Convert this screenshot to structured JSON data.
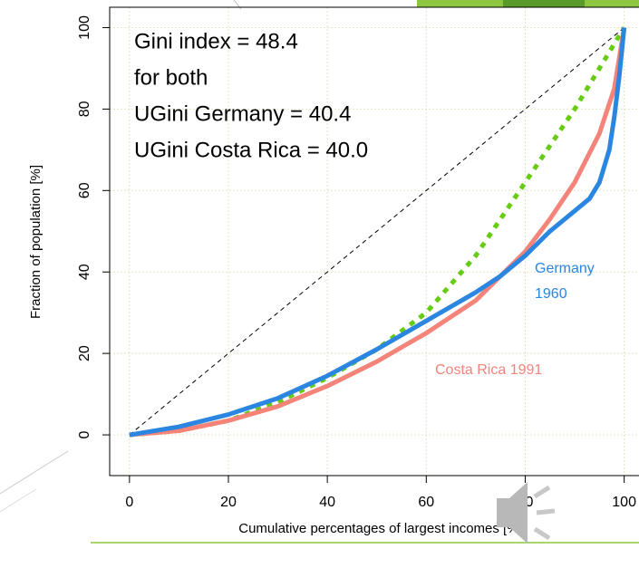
{
  "chart_data": {
    "type": "line",
    "annotation": [
      "Gini index = 48.4",
      "for both",
      "UGini Germany = 40.4",
      "UGini Costa Rica = 40.0"
    ],
    "xlabel": "Cumulative percentages of largest incomes [%]",
    "ylabel": "Fraction of population [%]",
    "xlim": [
      -4,
      103
    ],
    "ylim": [
      -10,
      105
    ],
    "xticks": [
      0,
      20,
      40,
      60,
      80,
      100
    ],
    "yticks": [
      0,
      20,
      40,
      60,
      80,
      100
    ],
    "grid": true,
    "series": [
      {
        "color": "#000000",
        "style": "thin-dashed",
        "x": [
          0,
          100
        ],
        "values": [
          0,
          100
        ]
      },
      {
        "color": "#66cc11",
        "style": "dotted",
        "x": [
          0,
          10,
          20,
          30,
          40,
          50,
          60,
          70,
          80,
          90,
          100
        ],
        "values": [
          0,
          1,
          3.5,
          8,
          14,
          21,
          30,
          44,
          62,
          80,
          100
        ]
      },
      {
        "name": "Costa Rica 1991",
        "color": "#f4837a",
        "style": "solid",
        "x": [
          0,
          10,
          20,
          30,
          40,
          50,
          60,
          70,
          75,
          80,
          85,
          90,
          95,
          98,
          100
        ],
        "values": [
          0,
          1,
          3.5,
          7,
          12,
          18,
          25,
          33,
          39,
          45,
          53,
          62,
          74,
          85,
          100
        ]
      },
      {
        "name": "Germany 1960",
        "color": "#2a86e0",
        "style": "solid",
        "x": [
          0,
          10,
          20,
          30,
          40,
          50,
          60,
          70,
          75,
          80,
          85,
          90,
          93,
          95,
          97,
          98,
          99,
          100
        ],
        "values": [
          0,
          2,
          5,
          9,
          14.5,
          21,
          28,
          35,
          39,
          44,
          50,
          55,
          58,
          62,
          70,
          78,
          88,
          100
        ]
      }
    ]
  }
}
